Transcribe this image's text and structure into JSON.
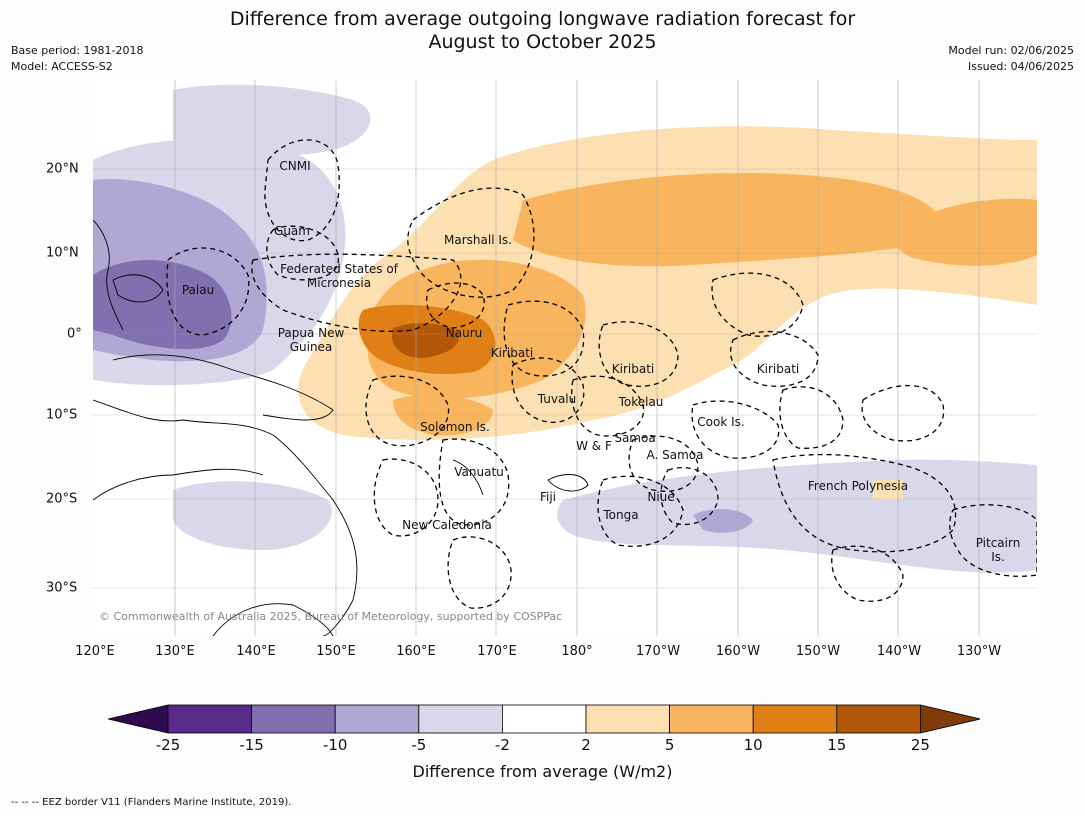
{
  "title_line1": "Difference from average outgoing longwave radiation forecast for",
  "title_line2": "August to October 2025",
  "meta_left": {
    "base_period": "Base period: 1981-2018",
    "model": "Model: ACCESS-S2"
  },
  "meta_right": {
    "model_run": "Model run: 02/06/2025",
    "issued": "Issued: 04/06/2025"
  },
  "longitude_labels": [
    "120°E",
    "130°E",
    "140°E",
    "150°E",
    "160°E",
    "170°E",
    "180°",
    "170°W",
    "160°W",
    "150°W",
    "140°W",
    "130°W"
  ],
  "latitude_labels": [
    "20°N",
    "10°N",
    "0°",
    "10°S",
    "20°S",
    "30°S"
  ],
  "places": [
    "CNMI",
    "Guam",
    "Marshall Is.",
    "Federated States of Micronesia",
    "Palau",
    "Papua New Guinea",
    "Nauru",
    "Kiribati",
    "Kiribati",
    "Kiribati",
    "Tuvalu",
    "Tokelau",
    "Cook Is.",
    "Solomon Is.",
    "W & F",
    "Samoa",
    "A. Samoa",
    "Vanuatu",
    "Fiji",
    "Niue",
    "Tonga",
    "French Polynesia",
    "New Caledonia",
    "Pitcairn Is."
  ],
  "copyright": "© Commonwealth of Australia 2025, Bureau of Meteorology, supported by COSPPac",
  "colorbar": {
    "ticks": [
      "-25",
      "-15",
      "-10",
      "-5",
      "-2",
      "2",
      "5",
      "10",
      "15",
      "25"
    ],
    "colors": [
      "#5a2a8a",
      "#8070b0",
      "#b0a8d4",
      "#d8d8ea",
      "#ffffff",
      "#fde0b2",
      "#f9b55e",
      "#e07f16",
      "#b35709"
    ],
    "under_color": "#2d0b4e",
    "over_color": "#7f3b08",
    "label": "Difference from average (W/m2)"
  },
  "footnote": "--  --  -- EEZ border V11 (Flanders Marine Institute, 2019)."
}
